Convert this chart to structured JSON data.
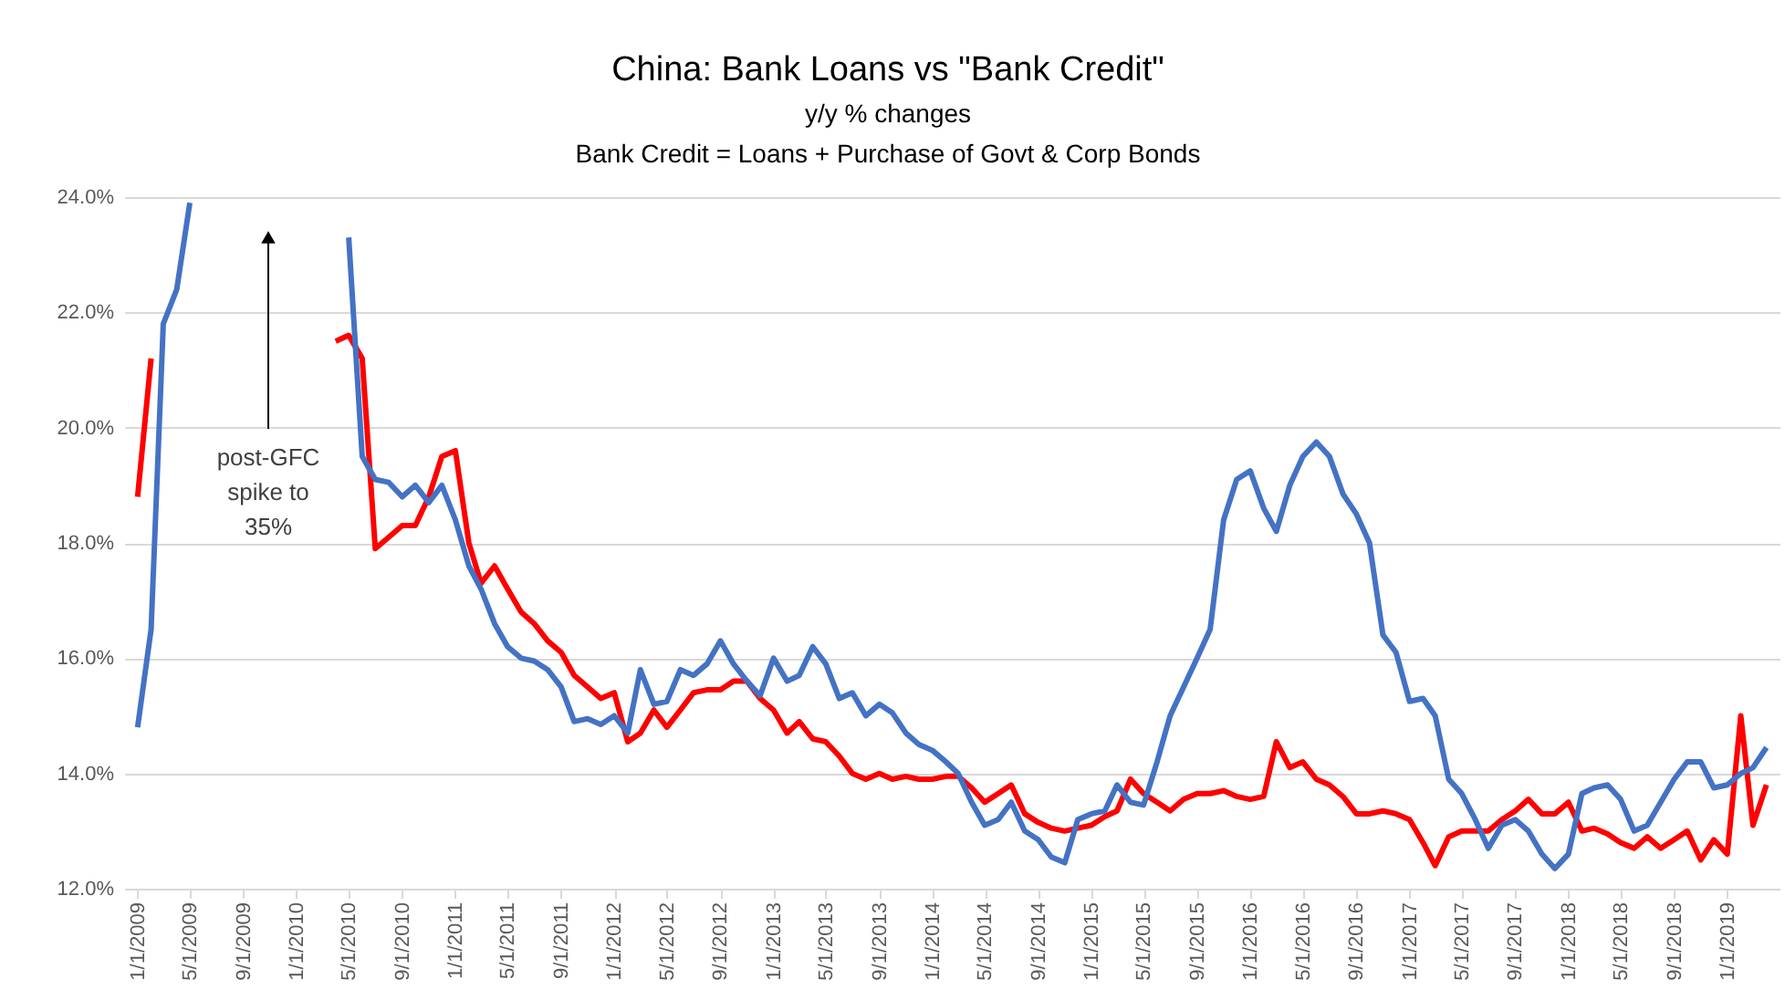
{
  "chart_data": {
    "type": "line",
    "title": "China: Bank Loans vs \"Bank Credit\"",
    "subtitle": "y/y % changes\nBank Credit = Loans + Purchase of Govt & Corp Bonds",
    "x": [
      "2009-01",
      "2009-02",
      "2009-03",
      "2009-04",
      "2009-05",
      "2009-06",
      "2009-07",
      "2009-08",
      "2009-09",
      "2009-10",
      "2009-11",
      "2009-12",
      "2010-01",
      "2010-02",
      "2010-03",
      "2010-04",
      "2010-05",
      "2010-06",
      "2010-07",
      "2010-08",
      "2010-09",
      "2010-10",
      "2010-11",
      "2010-12",
      "2011-01",
      "2011-02",
      "2011-03",
      "2011-04",
      "2011-05",
      "2011-06",
      "2011-07",
      "2011-08",
      "2011-09",
      "2011-10",
      "2011-11",
      "2011-12",
      "2012-01",
      "2012-02",
      "2012-03",
      "2012-04",
      "2012-05",
      "2012-06",
      "2012-07",
      "2012-08",
      "2012-09",
      "2012-10",
      "2012-11",
      "2012-12",
      "2013-01",
      "2013-02",
      "2013-03",
      "2013-04",
      "2013-05",
      "2013-06",
      "2013-07",
      "2013-08",
      "2013-09",
      "2013-10",
      "2013-11",
      "2013-12",
      "2014-01",
      "2014-02",
      "2014-03",
      "2014-04",
      "2014-05",
      "2014-06",
      "2014-07",
      "2014-08",
      "2014-09",
      "2014-10",
      "2014-11",
      "2014-12",
      "2015-01",
      "2015-02",
      "2015-03",
      "2015-04",
      "2015-05",
      "2015-06",
      "2015-07",
      "2015-08",
      "2015-09",
      "2015-10",
      "2015-11",
      "2015-12",
      "2016-01",
      "2016-02",
      "2016-03",
      "2016-04",
      "2016-05",
      "2016-06",
      "2016-07",
      "2016-08",
      "2016-09",
      "2016-10",
      "2016-11",
      "2016-12",
      "2017-01",
      "2017-02",
      "2017-03",
      "2017-04",
      "2017-05",
      "2017-06",
      "2017-07",
      "2017-08",
      "2017-09",
      "2017-10",
      "2017-11",
      "2017-12",
      "2018-01",
      "2018-02",
      "2018-03",
      "2018-04",
      "2018-05",
      "2018-06",
      "2018-07",
      "2018-08",
      "2018-09",
      "2018-10",
      "2018-11",
      "2018-12",
      "2019-01",
      "2019-02",
      "2019-03",
      "2019-04"
    ],
    "series": [
      {
        "color": "#ff0000",
        "values": [
          18.8,
          21.2,
          null,
          null,
          null,
          null,
          null,
          null,
          null,
          null,
          null,
          null,
          null,
          null,
          null,
          21.5,
          21.6,
          21.2,
          17.9,
          18.1,
          18.3,
          18.3,
          18.8,
          19.5,
          19.6,
          18.0,
          17.3,
          17.6,
          17.2,
          16.8,
          16.6,
          16.3,
          16.1,
          15.7,
          15.5,
          15.3,
          15.4,
          14.55,
          14.7,
          15.1,
          14.8,
          15.1,
          15.4,
          15.45,
          15.45,
          15.6,
          15.6,
          15.3,
          15.1,
          14.7,
          14.9,
          14.6,
          14.55,
          14.3,
          14.0,
          13.9,
          14.0,
          13.9,
          13.95,
          13.9,
          13.9,
          13.95,
          13.95,
          13.75,
          13.5,
          13.65,
          13.8,
          13.3,
          13.15,
          13.05,
          13.0,
          13.05,
          13.1,
          13.25,
          13.35,
          13.9,
          13.65,
          13.5,
          13.35,
          13.55,
          13.65,
          13.65,
          13.7,
          13.6,
          13.55,
          13.6,
          14.55,
          14.1,
          14.2,
          13.9,
          13.8,
          13.6,
          13.3,
          13.3,
          13.35,
          13.3,
          13.2,
          12.8,
          12.4,
          12.9,
          13.0,
          13.0,
          13.0,
          13.2,
          13.35,
          13.55,
          13.3,
          13.3,
          13.5,
          13.0,
          13.05,
          12.95,
          12.8,
          12.7,
          12.9,
          12.7,
          12.85,
          13.0,
          12.5,
          12.85,
          12.6,
          15.0,
          13.1,
          13.8
        ]
      },
      {
        "color": "#4472c4",
        "values": [
          14.8,
          16.5,
          21.8,
          22.4,
          23.9,
          null,
          null,
          null,
          null,
          null,
          null,
          null,
          null,
          null,
          null,
          null,
          23.3,
          19.5,
          19.1,
          19.05,
          18.8,
          19.0,
          18.7,
          19.0,
          18.4,
          17.6,
          17.2,
          16.6,
          16.2,
          16.0,
          15.95,
          15.8,
          15.5,
          14.9,
          14.95,
          14.85,
          15.0,
          14.7,
          15.8,
          15.2,
          15.25,
          15.8,
          15.7,
          15.9,
          16.3,
          15.9,
          15.6,
          15.35,
          16.0,
          15.6,
          15.7,
          16.2,
          15.9,
          15.3,
          15.4,
          15.0,
          15.2,
          15.05,
          14.7,
          14.5,
          14.4,
          14.2,
          14.0,
          13.5,
          13.1,
          13.2,
          13.5,
          13.0,
          12.85,
          12.55,
          12.45,
          13.2,
          13.3,
          13.35,
          13.8,
          13.5,
          13.45,
          14.2,
          15.0,
          15.5,
          16.0,
          16.5,
          18.4,
          19.1,
          19.25,
          18.6,
          18.2,
          19.0,
          19.5,
          19.75,
          19.5,
          18.85,
          18.5,
          18.0,
          16.4,
          16.1,
          15.25,
          15.3,
          15.0,
          13.9,
          13.65,
          13.2,
          12.7,
          13.1,
          13.2,
          13.0,
          12.6,
          12.35,
          12.6,
          13.65,
          13.75,
          13.8,
          13.55,
          13.0,
          13.1,
          13.5,
          13.9,
          14.2,
          14.2,
          13.75,
          13.8,
          14.0,
          14.1,
          14.45
        ]
      }
    ],
    "xlim": [
      "2008-12",
      "2019-05"
    ],
    "xticks": [
      {
        "value": "2009-01",
        "label": "1/1/2009"
      },
      {
        "value": "2009-05",
        "label": "5/1/2009"
      },
      {
        "value": "2009-09",
        "label": "9/1/2009"
      },
      {
        "value": "2010-01",
        "label": "1/1/2010"
      },
      {
        "value": "2010-05",
        "label": "5/1/2010"
      },
      {
        "value": "2010-09",
        "label": "9/1/2010"
      },
      {
        "value": "2011-01",
        "label": "1/1/2011"
      },
      {
        "value": "2011-05",
        "label": "5/1/2011"
      },
      {
        "value": "2011-09",
        "label": "9/1/2011"
      },
      {
        "value": "2012-01",
        "label": "1/1/2012"
      },
      {
        "value": "2012-05",
        "label": "5/1/2012"
      },
      {
        "value": "2012-09",
        "label": "9/1/2012"
      },
      {
        "value": "2013-01",
        "label": "1/1/2013"
      },
      {
        "value": "2013-05",
        "label": "5/1/2013"
      },
      {
        "value": "2013-09",
        "label": "9/1/2013"
      },
      {
        "value": "2014-01",
        "label": "1/1/2014"
      },
      {
        "value": "2014-05",
        "label": "5/1/2014"
      },
      {
        "value": "2014-09",
        "label": "9/1/2014"
      },
      {
        "value": "2015-01",
        "label": "1/1/2015"
      },
      {
        "value": "2015-05",
        "label": "5/1/2015"
      },
      {
        "value": "2015-09",
        "label": "9/1/2015"
      },
      {
        "value": "2016-01",
        "label": "1/1/2016"
      },
      {
        "value": "2016-05",
        "label": "5/1/2016"
      },
      {
        "value": "2016-09",
        "label": "9/1/2016"
      },
      {
        "value": "2017-01",
        "label": "1/1/2017"
      },
      {
        "value": "2017-05",
        "label": "5/1/2017"
      },
      {
        "value": "2017-09",
        "label": "9/1/2017"
      },
      {
        "value": "2018-01",
        "label": "1/1/2018"
      },
      {
        "value": "2018-05",
        "label": "5/1/2018"
      },
      {
        "value": "2018-09",
        "label": "9/1/2018"
      },
      {
        "value": "2019-01",
        "label": "1/1/2019"
      }
    ],
    "ylim": [
      12,
      24
    ],
    "yticks": [
      {
        "value": 12,
        "label": "12.0%"
      },
      {
        "value": 14,
        "label": "14.0%"
      },
      {
        "value": 16,
        "label": "16.0%"
      },
      {
        "value": 18,
        "label": "18.0%"
      },
      {
        "value": 20,
        "label": "20.0%"
      },
      {
        "value": 22,
        "label": "22.0%"
      },
      {
        "value": 24,
        "label": "24.0%"
      }
    ],
    "grid": "y",
    "annotations": [
      "post-GFC spike to 35%"
    ]
  }
}
